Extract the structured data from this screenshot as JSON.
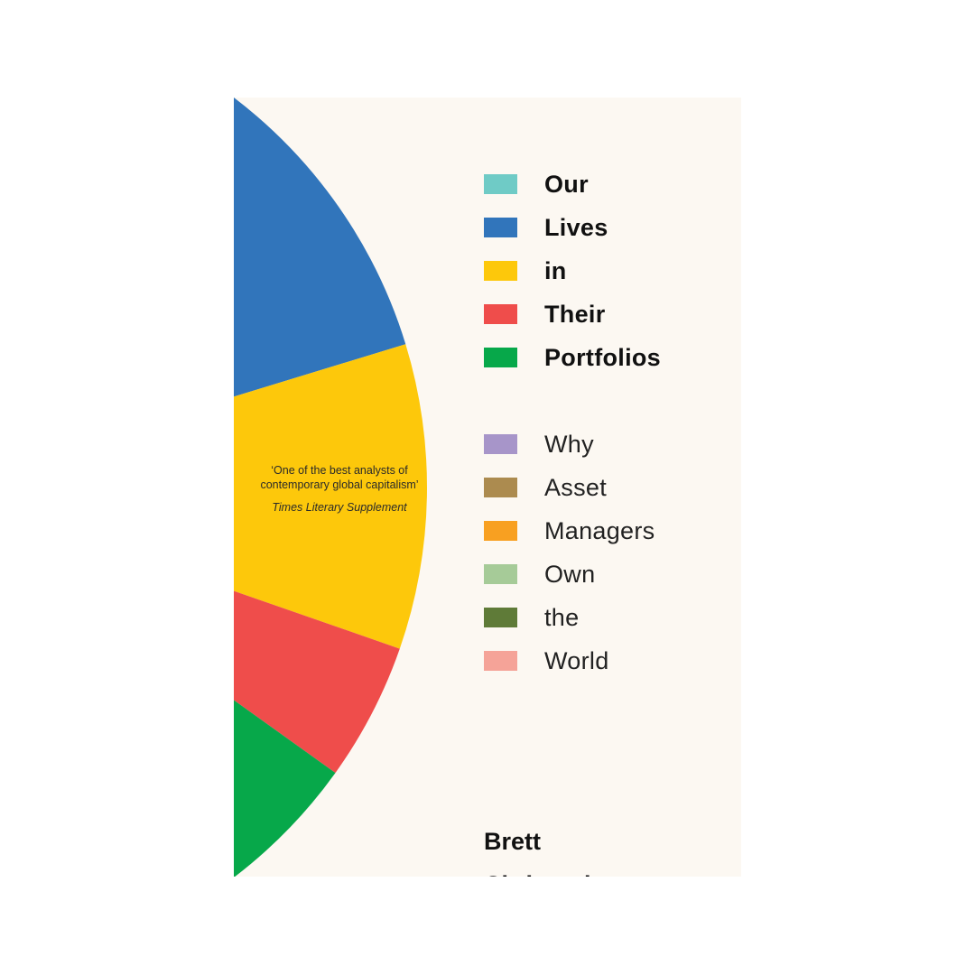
{
  "cover": {
    "background": "#fcf8f2",
    "title_words": [
      {
        "word": "Our",
        "color": "#6fcbc6"
      },
      {
        "word": "Lives",
        "color": "#3175bb"
      },
      {
        "word": "in",
        "color": "#fdc80b"
      },
      {
        "word": "Their",
        "color": "#ef4d4b"
      },
      {
        "word": "Portfolios",
        "color": "#07a84a"
      }
    ],
    "subtitle_words": [
      {
        "word": "Why",
        "color": "#a795c9"
      },
      {
        "word": "Asset",
        "color": "#ac8b4f"
      },
      {
        "word": "Managers",
        "color": "#f8a021"
      },
      {
        "word": "Own",
        "color": "#a6cb98"
      },
      {
        "word": "the",
        "color": "#5f7b38"
      },
      {
        "word": "World",
        "color": "#f5a398"
      }
    ],
    "author": [
      "Brett",
      "Christophers"
    ],
    "quote": {
      "text": "‘One of the best analysts of contemporary global capitalism’",
      "source": "Times Literary Supplement"
    },
    "pie_slices": [
      {
        "color": "#3175bb"
      },
      {
        "color": "#fdc80b"
      },
      {
        "color": "#ef4d4b"
      },
      {
        "color": "#07a84a"
      }
    ]
  }
}
